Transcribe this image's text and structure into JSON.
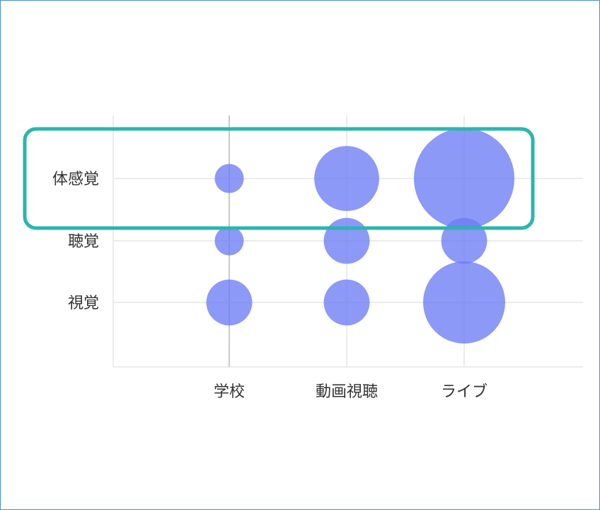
{
  "chart_data": {
    "type": "scatter",
    "variant": "bubble",
    "categories_x": [
      "学校",
      "動画視聴",
      "ライブ"
    ],
    "categories_y": [
      "視覚",
      "聴覚",
      "体感覚"
    ],
    "points": [
      {
        "x": "学校",
        "y": "体感覚",
        "size": 1
      },
      {
        "x": "動画視聴",
        "y": "体感覚",
        "size": 5
      },
      {
        "x": "ライブ",
        "y": "体感覚",
        "size": 12
      },
      {
        "x": "学校",
        "y": "聴覚",
        "size": 1
      },
      {
        "x": "動画視聴",
        "y": "聴覚",
        "size": 2.5
      },
      {
        "x": "ライブ",
        "y": "聴覚",
        "size": 2.5
      },
      {
        "x": "学校",
        "y": "視覚",
        "size": 2.5
      },
      {
        "x": "動画視聴",
        "y": "視覚",
        "size": 2.5
      },
      {
        "x": "ライブ",
        "y": "視覚",
        "size": 8
      }
    ],
    "highlight_row": "体感覚",
    "grid": true,
    "colors": {
      "bubble": "#6b7cf5",
      "highlight": "#2bb5b0",
      "grid": "#e6e6e6",
      "frame": "#4a90c8"
    }
  }
}
